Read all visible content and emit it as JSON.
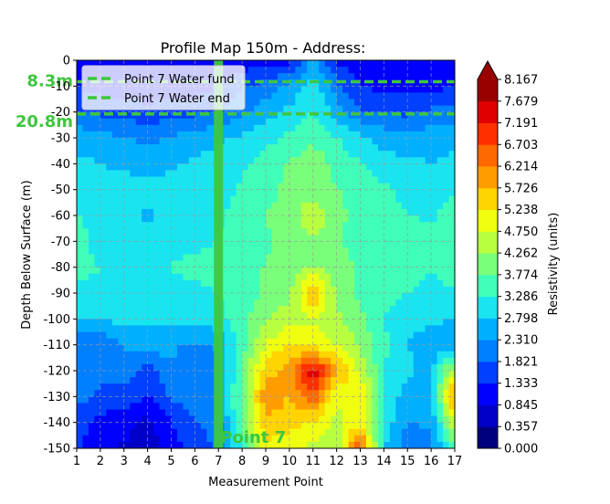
{
  "chart_data": {
    "type": "heatmap",
    "title": "Profile Map 150m - Address:",
    "xlabel": "Measurement Point",
    "ylabel": "Depth Below Surface (m)",
    "colorbar_label": "Resistivity (units)",
    "x_ticks": [
      1,
      2,
      3,
      4,
      5,
      6,
      7,
      8,
      9,
      10,
      11,
      12,
      13,
      14,
      15,
      16,
      17
    ],
    "y_ticks": [
      0,
      -10,
      -20,
      -30,
      -40,
      -50,
      -60,
      -70,
      -80,
      -90,
      -100,
      -110,
      -120,
      -130,
      -140,
      -150
    ],
    "xlim": [
      1,
      17
    ],
    "ylim": [
      -150,
      0
    ],
    "grid": true,
    "colorbar_levels": [
      "0.000",
      "0.357",
      "0.845",
      "1.333",
      "1.821",
      "2.310",
      "2.798",
      "3.286",
      "3.774",
      "4.262",
      "4.750",
      "5.238",
      "5.726",
      "6.214",
      "6.703",
      "7.191",
      "7.679",
      "8.167"
    ],
    "colorbar_colors": [
      "#00007f",
      "#0000c8",
      "#0000ff",
      "#0040ff",
      "#0080ff",
      "#00b0ff",
      "#1ae4f0",
      "#40ffb8",
      "#7aff7a",
      "#b8ff40",
      "#f0ff10",
      "#ffd400",
      "#ff9c00",
      "#ff6a00",
      "#ff3000",
      "#e00000",
      "#990000"
    ],
    "legend_position": "upper-left",
    "legend": [
      {
        "label": "Point 7 Water fund",
        "color": "#3fc63f"
      },
      {
        "label": "Point 7 Water end",
        "color": "#3fc63f"
      }
    ],
    "annotations": {
      "water_fund_depth": -8.3,
      "water_fund_label": "8.3m",
      "water_end_depth": -20.8,
      "water_end_label": "20.8m",
      "point_x": 7,
      "point_label": "Point 7"
    },
    "depths": [
      0,
      -10,
      -20,
      -30,
      -40,
      -50,
      -60,
      -70,
      -80,
      -90,
      -100,
      -110,
      -120,
      -130,
      -140,
      -150
    ],
    "values": [
      [
        1.2,
        1.0,
        1.0,
        0.9,
        0.9,
        1.0,
        1.0,
        1.0,
        1.1,
        1.2,
        2.4,
        1.2,
        1.0,
        1.0,
        1.0,
        1.0,
        1.1
      ],
      [
        1.3,
        1.1,
        1.1,
        1.0,
        1.0,
        1.1,
        1.3,
        1.8,
        2.0,
        2.4,
        3.1,
        2.0,
        1.3,
        1.2,
        1.1,
        1.2,
        1.3
      ],
      [
        1.9,
        1.7,
        1.6,
        1.5,
        1.6,
        1.7,
        1.8,
        2.2,
        2.6,
        2.9,
        3.3,
        2.6,
        1.9,
        1.8,
        1.7,
        1.9,
        2.1
      ],
      [
        2.6,
        2.5,
        2.3,
        2.2,
        2.3,
        2.6,
        2.7,
        2.9,
        3.1,
        3.4,
        3.6,
        3.3,
        2.9,
        2.6,
        2.5,
        2.6,
        2.7
      ],
      [
        2.9,
        2.8,
        2.7,
        2.6,
        2.7,
        2.9,
        2.9,
        3.2,
        3.5,
        3.8,
        4.2,
        3.6,
        3.3,
        3.0,
        2.9,
        2.8,
        2.9
      ],
      [
        3.1,
        3.0,
        3.0,
        2.9,
        3.0,
        3.0,
        3.0,
        3.4,
        3.6,
        3.9,
        4.0,
        3.8,
        3.5,
        3.4,
        3.1,
        3.0,
        3.1
      ],
      [
        3.3,
        3.1,
        3.0,
        2.7,
        3.0,
        3.1,
        3.2,
        3.6,
        3.8,
        4.0,
        4.8,
        3.9,
        3.6,
        3.5,
        3.3,
        3.2,
        3.7
      ],
      [
        3.6,
        3.0,
        3.1,
        3.0,
        3.1,
        3.2,
        3.3,
        3.5,
        3.7,
        3.9,
        4.1,
        3.8,
        3.6,
        3.5,
        3.5,
        3.4,
        3.6
      ],
      [
        3.4,
        3.3,
        3.2,
        3.2,
        3.3,
        3.4,
        3.4,
        3.6,
        3.8,
        4.0,
        4.3,
        4.0,
        3.7,
        3.6,
        3.4,
        3.3,
        3.6
      ],
      [
        3.2,
        3.1,
        3.0,
        3.1,
        3.2,
        3.2,
        3.3,
        3.6,
        3.8,
        4.1,
        5.8,
        4.1,
        3.6,
        3.4,
        3.3,
        3.2,
        3.2
      ],
      [
        2.8,
        2.9,
        2.9,
        2.9,
        3.0,
        3.0,
        3.1,
        3.6,
        4.2,
        4.6,
        4.7,
        4.4,
        3.9,
        3.3,
        3.0,
        2.9,
        2.8
      ],
      [
        1.9,
        1.8,
        2.4,
        2.6,
        2.4,
        2.2,
        2.4,
        3.5,
        4.8,
        5.3,
        5.0,
        4.7,
        4.2,
        3.4,
        2.8,
        2.5,
        2.3
      ],
      [
        2.2,
        2.0,
        2.1,
        1.6,
        2.3,
        2.0,
        2.2,
        3.8,
        5.5,
        6.0,
        7.6,
        5.9,
        4.6,
        3.3,
        2.9,
        2.6,
        4.8
      ],
      [
        2.0,
        1.7,
        1.6,
        1.3,
        1.9,
        2.1,
        2.3,
        4.0,
        6.1,
        5.7,
        6.6,
        4.8,
        5.3,
        3.2,
        2.6,
        2.6,
        6.3
      ],
      [
        1.6,
        1.2,
        1.0,
        0.7,
        1.3,
        1.8,
        2.1,
        3.8,
        5.6,
        5.5,
        5.2,
        4.6,
        5.1,
        3.1,
        2.3,
        2.4,
        4.8
      ],
      [
        1.4,
        0.9,
        0.8,
        0.6,
        1.1,
        1.5,
        1.9,
        3.4,
        5.1,
        4.8,
        4.6,
        4.3,
        6.9,
        2.8,
        2.0,
        2.1,
        3.6
      ]
    ]
  }
}
